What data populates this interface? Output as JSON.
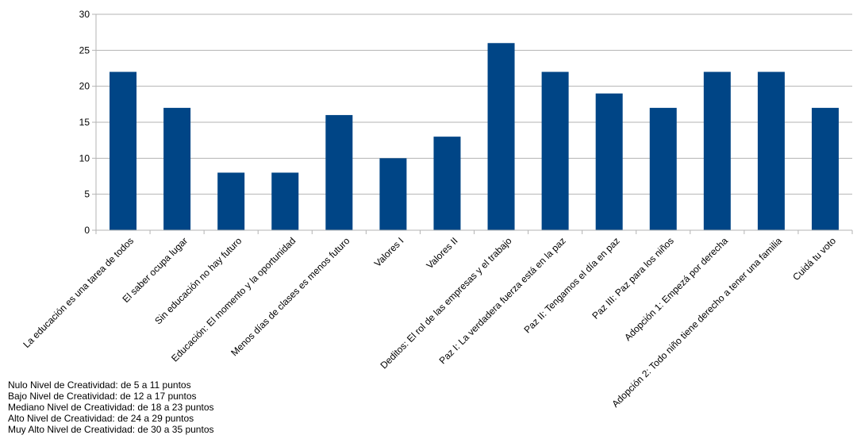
{
  "chart_data": {
    "type": "bar",
    "title": "",
    "xlabel": "",
    "ylabel": "",
    "ylim": [
      0,
      30
    ],
    "yticks": [
      0,
      5,
      10,
      15,
      20,
      25,
      30
    ],
    "grid": true,
    "bar_color": "#004586",
    "categories": [
      "La educación es una tarea de todos",
      "El saber ocupa lugar",
      "Sin educación no hay futuro",
      "Educación: El momento y la oportunidad",
      "Menos días de clases es menos futuro",
      "Valores I",
      "Valores II",
      "Deditos: El rol de las empresas y el trabajo",
      "Paz I: La verdadera fuerza está en la paz",
      "Paz II: Tengamos el día en paz",
      "Paz III: Paz para los niños",
      "Adopción 1: Empezá por derecha",
      "Adopción 2: Todo niño tiene derecho a tener una familia",
      "Cuidá tu voto"
    ],
    "values": [
      22,
      17,
      8,
      8,
      16,
      10,
      13,
      26,
      22,
      19,
      17,
      22,
      22,
      17
    ]
  },
  "legend_notes": [
    "Nulo Nivel de Creatividad: de 5 a 11 puntos",
    "Bajo Nivel de Creatividad: de 12 a 17 puntos",
    "Mediano Nivel de Creatividad: de 18 a 23 puntos",
    "Alto Nivel de Creatividad: de 24 a 29 puntos",
    "Muy Alto Nivel de Creatividad: de 30 a 35 puntos"
  ]
}
